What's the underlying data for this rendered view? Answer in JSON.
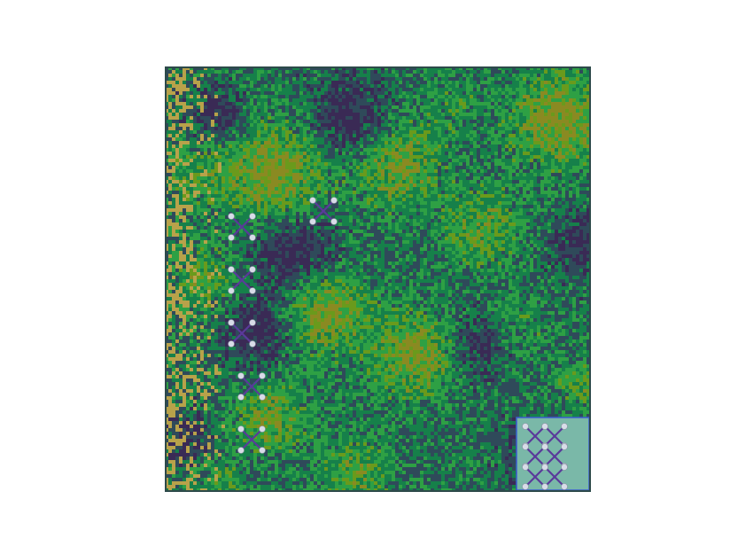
{
  "scene": {
    "background_color": "#ffffff",
    "board_border_color": "#2d4a4a",
    "palette": {
      "deep": "#3a2a55",
      "dark": "#2f4a5a",
      "mid": "#16804a",
      "green": "#2ea044",
      "yellow_green": "#6a9a1c",
      "olive": "#8a8a22",
      "sand": "#b8a24a"
    },
    "minimap": {
      "fill_color": "#7ab8a8",
      "border_color": "#3a5ad0"
    },
    "marker_colors": {
      "cross": "#5a3a9a",
      "dot": "#d8dce8"
    },
    "markers": [
      {
        "icon": "cross-marker-icon",
        "cluster": "upper"
      },
      {
        "icon": "cross-marker-icon",
        "cluster": "left-1"
      },
      {
        "icon": "cross-marker-icon",
        "cluster": "left-2"
      },
      {
        "icon": "cross-marker-icon",
        "cluster": "left-3"
      },
      {
        "icon": "cross-marker-icon",
        "cluster": "left-4"
      },
      {
        "icon": "cross-marker-icon",
        "cluster": "left-5"
      }
    ]
  }
}
